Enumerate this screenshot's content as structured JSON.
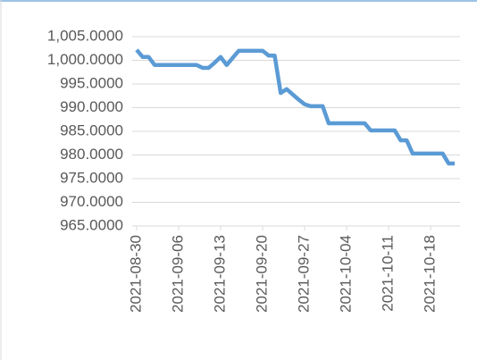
{
  "chart_data": {
    "type": "line",
    "x": [
      "2021-08-30",
      "2021-08-31",
      "2021-09-01",
      "2021-09-02",
      "2021-09-03",
      "2021-09-04",
      "2021-09-05",
      "2021-09-06",
      "2021-09-07",
      "2021-09-08",
      "2021-09-09",
      "2021-09-10",
      "2021-09-11",
      "2021-09-12",
      "2021-09-13",
      "2021-09-14",
      "2021-09-15",
      "2021-09-16",
      "2021-09-17",
      "2021-09-18",
      "2021-09-19",
      "2021-09-20",
      "2021-09-21",
      "2021-09-22",
      "2021-09-23",
      "2021-09-24",
      "2021-09-25",
      "2021-09-26",
      "2021-09-27",
      "2021-09-28",
      "2021-09-29",
      "2021-09-30",
      "2021-10-01",
      "2021-10-02",
      "2021-10-03",
      "2021-10-04",
      "2021-10-05",
      "2021-10-06",
      "2021-10-07",
      "2021-10-08",
      "2021-10-09",
      "2021-10-10",
      "2021-10-11",
      "2021-10-12",
      "2021-10-13",
      "2021-10-14",
      "2021-10-15",
      "2021-10-16",
      "2021-10-17",
      "2021-10-18",
      "2021-10-19",
      "2021-10-20",
      "2021-10-21",
      "2021-10-22"
    ],
    "series": [
      {
        "color": "#5b9bd5",
        "values": [
          1002.2,
          1000.7,
          1000.7,
          999.0,
          999.0,
          999.0,
          999.0,
          999.0,
          999.0,
          999.0,
          999.0,
          998.4,
          998.4,
          999.5,
          1000.7,
          999.0,
          1000.5,
          1002.0,
          1002.0,
          1002.0,
          1002.0,
          1002.0,
          1001.0,
          1001.0,
          993.1,
          993.9,
          992.8,
          991.7,
          990.7,
          990.3,
          990.3,
          990.3,
          986.7,
          986.7,
          986.7,
          986.7,
          986.7,
          986.7,
          986.7,
          985.2,
          985.2,
          985.2,
          985.2,
          985.2,
          983.1,
          983.1,
          980.3,
          980.3,
          980.3,
          980.3,
          980.3,
          980.3,
          978.2,
          978.2
        ]
      }
    ],
    "xlim": [
      "2021-08-30",
      "2021-10-22"
    ],
    "xticks": [
      "2021-08-30",
      "2021-09-06",
      "2021-09-13",
      "2021-09-20",
      "2021-09-27",
      "2021-10-04",
      "2021-10-11",
      "2021-10-18"
    ],
    "ylim": [
      965,
      1005
    ],
    "yticks": [
      {
        "value": 965,
        "label": "965.0000"
      },
      {
        "value": 970,
        "label": "970.0000"
      },
      {
        "value": 975,
        "label": "975.0000"
      },
      {
        "value": 980,
        "label": "980.0000"
      },
      {
        "value": 985,
        "label": "985.0000"
      },
      {
        "value": 990,
        "label": "990.0000"
      },
      {
        "value": 995,
        "label": "995.0000"
      },
      {
        "value": 1000,
        "label": "1,000.0000"
      },
      {
        "value": 1005,
        "label": "1,005.0000"
      }
    ],
    "grid": true
  }
}
